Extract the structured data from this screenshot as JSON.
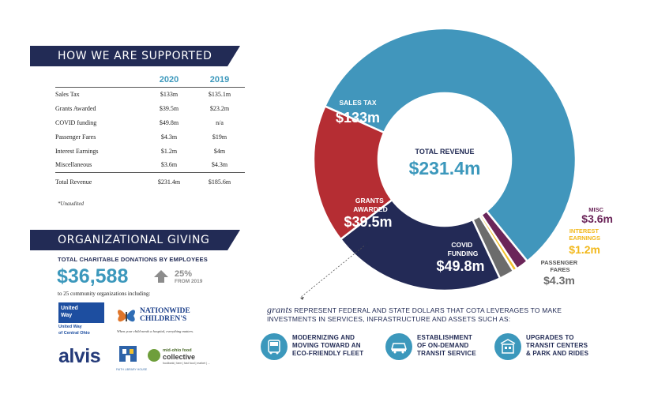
{
  "supported": {
    "heading": "HOW WE ARE SUPPORTED",
    "col_2020": "2020",
    "col_2019": "2019",
    "rows": [
      {
        "label": "Sales Tax",
        "y2020": "$133m",
        "y2019": "$135.1m"
      },
      {
        "label": "Grants Awarded",
        "y2020": "$39.5m",
        "y2019": "$23.2m"
      },
      {
        "label": "COVID funding",
        "y2020": "$49.8m",
        "y2019": "n/a"
      },
      {
        "label": "Passenger Fares",
        "y2020": "$4.3m",
        "y2019": "$19m"
      },
      {
        "label": "Interest Earnings",
        "y2020": "$1.2m",
        "y2019": "$4m"
      },
      {
        "label": "Miscellaneous",
        "y2020": "$3.6m",
        "y2019": "$4.3m"
      }
    ],
    "total": {
      "label": "Total Revenue",
      "y2020": "$231.4m",
      "y2019": "$185.6m"
    },
    "footnote": "*Unaudited"
  },
  "giving": {
    "heading": "ORGANIZATIONAL GIVING",
    "label": "TOTAL CHARITABLE DONATIONS BY EMPLOYEES",
    "amount": "$36,588",
    "change_pct": "25%",
    "change_sub": "FROM 2019",
    "orgs_text": "to 25 community organizations including:",
    "logos": {
      "united_way_1": "United",
      "united_way_2": "Way",
      "united_way_sub1": "United Way",
      "united_way_sub2": "of Central Ohio",
      "nationwide_1": "NATIONWIDE",
      "nationwide_2": "CHILDREN'S",
      "nationwide_tag": "When your child needs a hospital, everything matters.",
      "alvis": "alvis",
      "fls": "FAITH LIBRARY HOUSE",
      "mof_1": "mid-ohio food",
      "mof_2": "collective",
      "mof_3": "foodbank | farm | fast food | market | ..."
    }
  },
  "chart_data": {
    "type": "pie",
    "variant": "donut",
    "center_label": "TOTAL REVENUE",
    "center_value": "$231.4m",
    "total": 231.4,
    "slices": [
      {
        "label": "SALES TAX",
        "display": "$133m",
        "value": 133,
        "color": "#4196bc",
        "label_color": "#ffffff"
      },
      {
        "label": "MISC",
        "display": "$3.6m",
        "value": 3.6,
        "color": "#6b2559",
        "label_color": "#6b2559"
      },
      {
        "label": "INTEREST EARNINGS",
        "display": "$1.2m",
        "value": 1.2,
        "color": "#f2c12e",
        "label_color": "#f2b81c"
      },
      {
        "label": "PASSENGER FARES",
        "display": "$4.3m",
        "value": 4.3,
        "color": "#6c6c6c",
        "label_color": "#6c6c6c"
      },
      {
        "label": "COVID FUNDING",
        "display": "$49.8m",
        "value": 49.8,
        "color": "#232a56",
        "label_color": "#ffffff"
      },
      {
        "label": "GRANTS AWARDED",
        "display": "$39.5m",
        "value": 39.5,
        "color": "#b52d33",
        "label_color": "#ffffff"
      }
    ]
  },
  "grants_note": {
    "word": "grants",
    "text": " REPRESENT FEDERAL AND STATE DOLLARS THAT COTA LEVERAGES TO MAKE INVESTMENTS IN SERVICES, INFRASTRUCTURE AND ASSETS SUCH AS:"
  },
  "features": [
    {
      "icon": "bus-icon",
      "lines": [
        "MODERNIZING AND",
        "MOVING TOWARD AN",
        "ECO-FRIENDLY FLEET"
      ]
    },
    {
      "icon": "van-icon",
      "lines": [
        "ESTABLISHMENT",
        "OF ON-DEMAND",
        "TRANSIT SERVICE"
      ]
    },
    {
      "icon": "transit-center-icon",
      "lines": [
        "UPGRADES TO",
        "TRANSIT CENTERS",
        "& PARK AND RIDES"
      ]
    }
  ]
}
